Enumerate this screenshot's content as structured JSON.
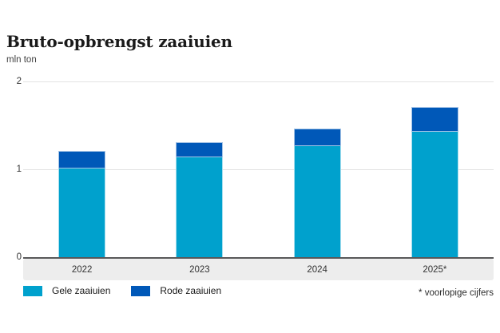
{
  "title": "Bruto-opbrengst zaaiuien",
  "unit_label": "mln ton",
  "footnote": "* voorlopige cijfers",
  "colors": {
    "gele": "#00a1cd",
    "rode": "#0058b8",
    "baseline": "#58585a",
    "gridline": "#e2e2e2",
    "band": "#ededed"
  },
  "chart_data": {
    "type": "bar",
    "stacked": true,
    "title": "Bruto-opbrengst zaaiuien",
    "ylabel": "mln ton",
    "categories": [
      "2022",
      "2023",
      "2024",
      "2025*"
    ],
    "series": [
      {
        "name": "Gele zaaiuien",
        "color": "#00a1cd",
        "values": [
          1.02,
          1.15,
          1.27,
          1.44
        ]
      },
      {
        "name": "Rode zaaiuien",
        "color": "#0058b8",
        "values": [
          0.2,
          0.17,
          0.2,
          0.28
        ]
      }
    ],
    "totals": [
      1.22,
      1.32,
      1.47,
      1.72
    ],
    "ylim": [
      0,
      2
    ],
    "yticks": [
      0,
      1,
      2
    ],
    "grid": true,
    "legend_position": "bottom",
    "annotations": [
      "* voorlopige cijfers"
    ]
  }
}
